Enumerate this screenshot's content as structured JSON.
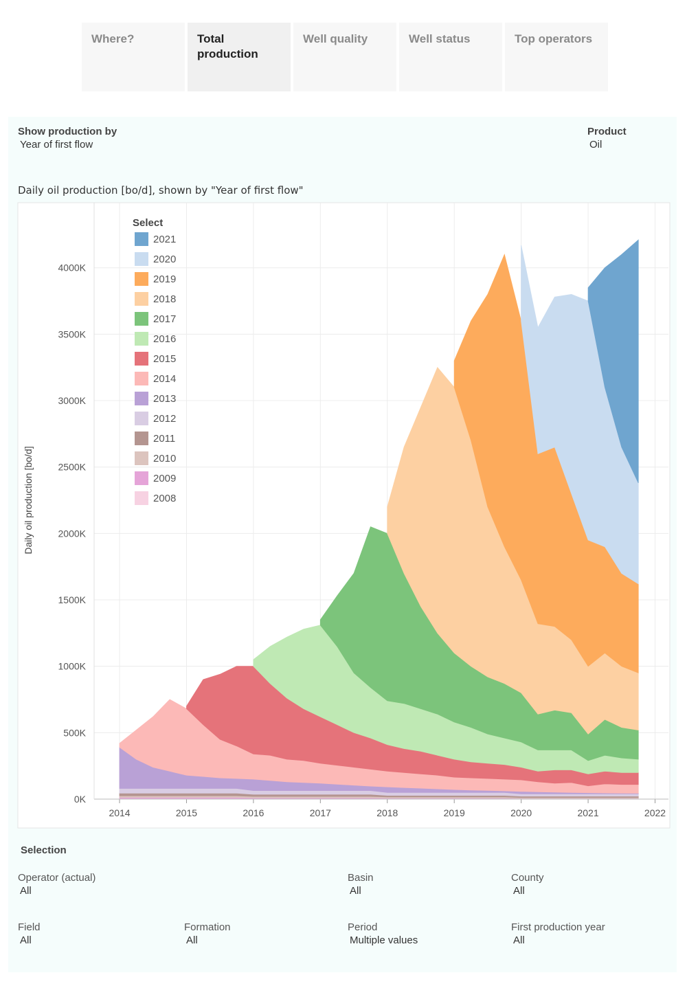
{
  "tabs": [
    "Where?",
    "Total production",
    "Well quality",
    "Well status",
    "Top operators"
  ],
  "selected_tab": 1,
  "controls": [
    {
      "label": "Show production by",
      "value": "Year of first flow"
    },
    {
      "label": "Product",
      "value": "Oil"
    }
  ],
  "chart_data": {
    "type": "area",
    "stacked": true,
    "title": "Daily oil production [bo/d], shown by \"Year of first flow\"",
    "y_label": "Daily oil production [bo/d]",
    "legend_title": "Select",
    "legend": "top-left",
    "grid": true,
    "xlim": [
      2013.62,
      2022.2
    ],
    "xticks": [
      2014,
      2015,
      2016,
      2017,
      2018,
      2019,
      2020,
      2021,
      2022
    ],
    "ylim": [
      0,
      4490000
    ],
    "yticks": [
      {
        "value": 0,
        "label": "0K"
      },
      {
        "value": 500000,
        "label": "500K"
      },
      {
        "value": 1000000,
        "label": "1000K"
      },
      {
        "value": 1500000,
        "label": "1500K"
      },
      {
        "value": 2000000,
        "label": "2000K"
      },
      {
        "value": 2500000,
        "label": "2500K"
      },
      {
        "value": 3000000,
        "label": "3000K"
      },
      {
        "value": 3500000,
        "label": "3500K"
      },
      {
        "value": 4000000,
        "label": "4000K"
      }
    ],
    "x": [
      2014,
      2014.25,
      2014.5,
      2014.75,
      2015,
      2015.25,
      2015.5,
      2015.75,
      2016,
      2016.25,
      2016.5,
      2016.75,
      2017,
      2017.25,
      2017.5,
      2017.75,
      2018,
      2018.25,
      2018.5,
      2018.75,
      2019,
      2019.25,
      2019.5,
      2019.75,
      2020,
      2020.25,
      2020.5,
      2020.75,
      2021,
      2021.25,
      2021.5,
      2021.75
    ],
    "series": [
      {
        "name": "2008",
        "color": "#f7d2e2",
        "values": [
          5000,
          5000,
          5000,
          5000,
          5000,
          5000,
          5000,
          5000,
          4000,
          4000,
          4000,
          4000,
          4000,
          4000,
          4000,
          4000,
          3000,
          3000,
          3000,
          3000,
          3000,
          3000,
          3000,
          3000,
          2000,
          2000,
          2000,
          2000,
          2000,
          2000,
          2000,
          2000
        ]
      },
      {
        "name": "2009",
        "color": "#e5a4d8",
        "values": [
          8000,
          8000,
          8000,
          8000,
          8000,
          8000,
          8000,
          8000,
          6000,
          6000,
          6000,
          6000,
          6000,
          6000,
          6000,
          6000,
          5000,
          5000,
          5000,
          5000,
          5000,
          5000,
          5000,
          5000,
          4000,
          4000,
          4000,
          4000,
          4000,
          4000,
          4000,
          4000
        ]
      },
      {
        "name": "2010",
        "color": "#dcc4be",
        "values": [
          12000,
          12000,
          12000,
          12000,
          12000,
          12000,
          12000,
          12000,
          10000,
          10000,
          10000,
          10000,
          10000,
          10000,
          10000,
          10000,
          8000,
          8000,
          8000,
          8000,
          8000,
          8000,
          8000,
          8000,
          6000,
          6000,
          6000,
          6000,
          6000,
          6000,
          6000,
          6000
        ]
      },
      {
        "name": "2011",
        "color": "#b49590",
        "values": [
          20000,
          20000,
          20000,
          20000,
          20000,
          20000,
          20000,
          20000,
          16000,
          16000,
          16000,
          16000,
          16000,
          16000,
          16000,
          16000,
          12000,
          12000,
          12000,
          12000,
          12000,
          12000,
          12000,
          12000,
          10000,
          10000,
          10000,
          10000,
          10000,
          10000,
          10000,
          10000
        ]
      },
      {
        "name": "2012",
        "color": "#d9cde3",
        "values": [
          35000,
          35000,
          35000,
          35000,
          35000,
          35000,
          35000,
          35000,
          28000,
          28000,
          28000,
          28000,
          28000,
          28000,
          28000,
          28000,
          22000,
          22000,
          22000,
          22000,
          22000,
          22000,
          22000,
          22000,
          18000,
          18000,
          18000,
          18000,
          18000,
          18000,
          18000,
          18000
        ]
      },
      {
        "name": "2013",
        "color": "#b9a1d6",
        "values": [
          310000,
          220000,
          160000,
          130000,
          100000,
          90000,
          80000,
          75000,
          86000,
          76000,
          66000,
          61000,
          56000,
          48000,
          41000,
          34000,
          42000,
          37000,
          32000,
          27000,
          22000,
          18000,
          15000,
          12000,
          18000,
          15000,
          12000,
          10000,
          8000,
          6000,
          5000,
          4000
        ]
      },
      {
        "name": "2014",
        "color": "#fcb9b7",
        "values": [
          30000,
          220000,
          380000,
          540000,
          500000,
          390000,
          290000,
          245000,
          190000,
          190000,
          170000,
          165000,
          150000,
          143000,
          135000,
          127000,
          118000,
          113000,
          108000,
          103000,
          93000,
          92000,
          90000,
          88000,
          87000,
          75000,
          68000,
          75000,
          52000,
          69000,
          65000,
          66000
        ]
      },
      {
        "name": "2015",
        "color": "#e5737a",
        "values": [
          null,
          null,
          null,
          null,
          20000,
          340000,
          490000,
          600000,
          660000,
          540000,
          460000,
          390000,
          350000,
          305000,
          260000,
          235000,
          200000,
          180000,
          170000,
          150000,
          135000,
          120000,
          115000,
          110000,
          95000,
          80000,
          100000,
          95000,
          90000,
          95000,
          90000,
          90000
        ]
      },
      {
        "name": "2016",
        "color": "#bfe9b4",
        "values": [
          null,
          null,
          null,
          null,
          null,
          null,
          null,
          null,
          50000,
          280000,
          460000,
          600000,
          690000,
          590000,
          450000,
          380000,
          330000,
          340000,
          320000,
          310000,
          280000,
          260000,
          220000,
          200000,
          190000,
          160000,
          150000,
          150000,
          100000,
          120000,
          110000,
          100000
        ]
      },
      {
        "name": "2017",
        "color": "#7cc47b",
        "values": [
          null,
          null,
          null,
          null,
          null,
          null,
          null,
          null,
          null,
          null,
          null,
          null,
          40000,
          380000,
          750000,
          1210000,
          1260000,
          980000,
          770000,
          610000,
          520000,
          460000,
          430000,
          410000,
          370000,
          270000,
          300000,
          280000,
          200000,
          270000,
          230000,
          220000
        ]
      },
      {
        "name": "2018",
        "color": "#fdd0a2",
        "values": [
          null,
          null,
          null,
          null,
          null,
          null,
          null,
          null,
          null,
          null,
          null,
          null,
          null,
          null,
          null,
          null,
          200000,
          950000,
          1500000,
          2000000,
          2000000,
          1700000,
          1280000,
          1030000,
          850000,
          680000,
          630000,
          550000,
          510000,
          500000,
          460000,
          430000
        ]
      },
      {
        "name": "2019",
        "color": "#fdab5c",
        "values": [
          null,
          null,
          null,
          null,
          null,
          null,
          null,
          null,
          null,
          null,
          null,
          null,
          null,
          null,
          null,
          null,
          null,
          null,
          null,
          null,
          200000,
          900000,
          1600000,
          2200000,
          1950000,
          1280000,
          1350000,
          1100000,
          950000,
          800000,
          700000,
          670000
        ]
      },
      {
        "name": "2020",
        "color": "#c9dcf0",
        "values": [
          null,
          null,
          null,
          null,
          null,
          null,
          null,
          null,
          null,
          null,
          null,
          null,
          null,
          null,
          null,
          null,
          null,
          null,
          null,
          null,
          null,
          null,
          null,
          null,
          570000,
          950000,
          1130000,
          1500000,
          1800000,
          1200000,
          950000,
          760000
        ]
      },
      {
        "name": "2021",
        "color": "#6fa5cf",
        "values": [
          null,
          null,
          null,
          null,
          null,
          null,
          null,
          null,
          null,
          null,
          null,
          null,
          null,
          null,
          null,
          null,
          null,
          null,
          null,
          null,
          null,
          null,
          null,
          null,
          null,
          null,
          null,
          null,
          100000,
          900000,
          1450000,
          1830000
        ]
      }
    ]
  },
  "selection": {
    "title": "Selection",
    "filters": [
      {
        "label": "Operator (actual)",
        "value": "All"
      },
      {
        "label": "Basin",
        "value": "All"
      },
      {
        "label": "County",
        "value": "All"
      },
      {
        "label": "Field",
        "value": "All"
      },
      {
        "label": "Formation",
        "value": "All"
      },
      {
        "label": "Period",
        "value": "Multiple values"
      },
      {
        "label": "First production year",
        "value": "All"
      }
    ]
  }
}
